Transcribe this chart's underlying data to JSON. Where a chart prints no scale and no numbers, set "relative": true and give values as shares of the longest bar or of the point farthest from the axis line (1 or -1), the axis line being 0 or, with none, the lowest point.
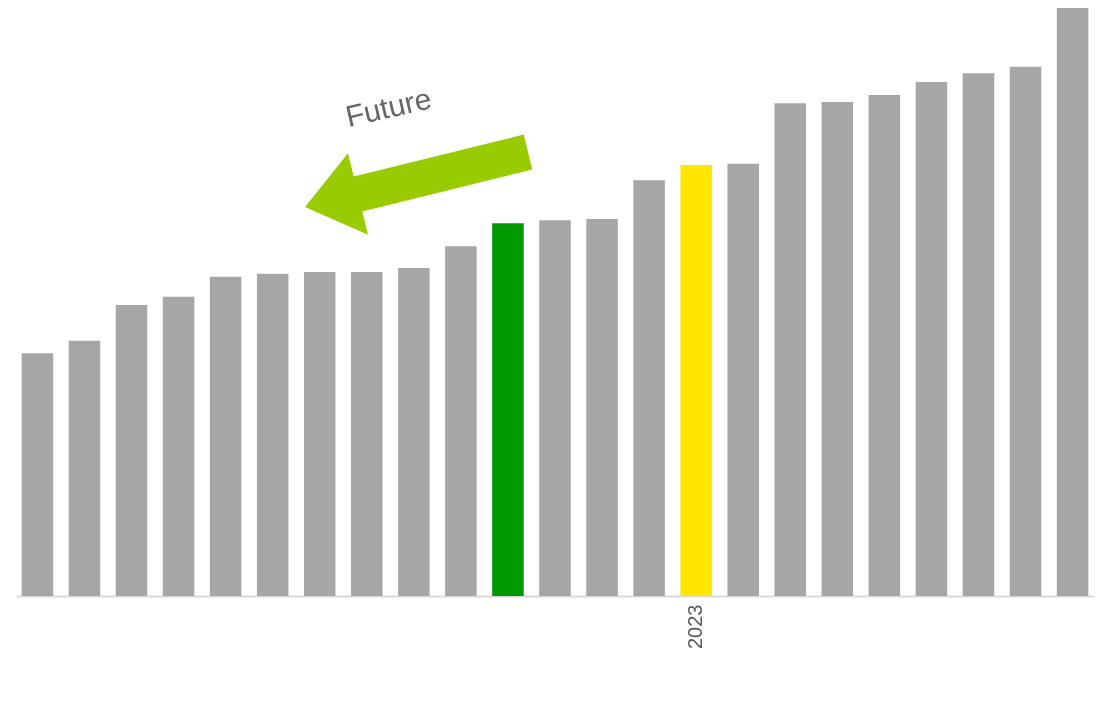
{
  "chart_data": {
    "type": "bar",
    "relative": true,
    "categories": [
      null,
      null,
      null,
      null,
      null,
      null,
      null,
      null,
      null,
      null,
      null,
      null,
      null,
      null,
      "2023",
      null,
      null,
      null,
      null,
      null,
      null,
      null,
      null
    ],
    "values": [
      0.413,
      0.434,
      0.495,
      0.509,
      0.543,
      0.548,
      0.551,
      0.551,
      0.558,
      0.595,
      0.634,
      0.639,
      0.641,
      0.707,
      0.733,
      0.735,
      0.838,
      0.84,
      0.852,
      0.874,
      0.889,
      0.9,
      1
    ],
    "colors": [
      "#a6a6a6",
      "#a6a6a6",
      "#a6a6a6",
      "#a6a6a6",
      "#a6a6a6",
      "#a6a6a6",
      "#a6a6a6",
      "#a6a6a6",
      "#a6a6a6",
      "#a6a6a6",
      "#009900",
      "#a6a6a6",
      "#a6a6a6",
      "#a6a6a6",
      "#ffe600",
      "#a6a6a6",
      "#a6a6a6",
      "#a6a6a6",
      "#a6a6a6",
      "#a6a6a6",
      "#a6a6a6",
      "#a6a6a6",
      "#a6a6a6"
    ],
    "annotations": [
      "Future"
    ]
  }
}
